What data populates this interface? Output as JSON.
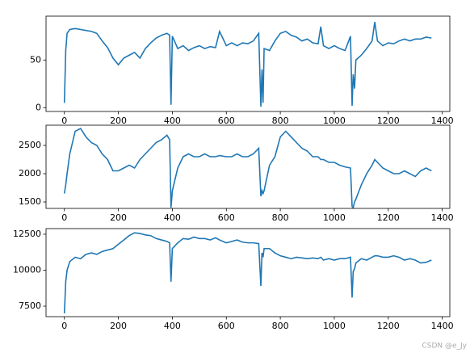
{
  "chart_data": [
    {
      "type": "line",
      "color": "#1f77b4",
      "x": [
        0,
        5,
        10,
        20,
        40,
        60,
        80,
        100,
        120,
        140,
        160,
        180,
        200,
        220,
        240,
        260,
        280,
        300,
        320,
        340,
        360,
        380,
        390,
        395,
        400,
        420,
        440,
        460,
        480,
        500,
        520,
        540,
        560,
        575,
        600,
        620,
        640,
        660,
        680,
        700,
        720,
        728,
        732,
        736,
        740,
        760,
        780,
        800,
        820,
        840,
        860,
        880,
        900,
        920,
        940,
        950,
        960,
        980,
        1000,
        1020,
        1040,
        1060,
        1066,
        1070,
        1075,
        1080,
        1100,
        1120,
        1140,
        1150,
        1160,
        1180,
        1200,
        1220,
        1240,
        1260,
        1280,
        1300,
        1320,
        1340,
        1360
      ],
      "values": [
        5,
        60,
        78,
        82,
        83,
        82,
        81,
        80,
        78,
        70,
        63,
        52,
        45,
        52,
        55,
        58,
        52,
        62,
        68,
        73,
        76,
        78,
        76,
        3,
        75,
        62,
        65,
        60,
        63,
        65,
        62,
        64,
        63,
        80,
        65,
        68,
        65,
        68,
        67,
        70,
        78,
        1,
        40,
        5,
        62,
        60,
        70,
        78,
        80,
        76,
        74,
        70,
        72,
        68,
        67,
        85,
        65,
        62,
        65,
        62,
        60,
        75,
        2,
        35,
        20,
        50,
        55,
        62,
        70,
        90,
        70,
        65,
        68,
        67,
        70,
        72,
        70,
        72,
        72,
        74,
        73
      ],
      "xlim": [
        -68,
        1428
      ],
      "xticks": [
        0,
        200,
        400,
        600,
        800,
        1000,
        1200,
        1400
      ],
      "ylim": [
        -4,
        96
      ],
      "yticks": [
        0,
        50
      ],
      "grid": false
    },
    {
      "type": "line",
      "color": "#1f77b4",
      "x": [
        0,
        5,
        10,
        20,
        40,
        60,
        80,
        100,
        120,
        140,
        160,
        180,
        200,
        220,
        240,
        260,
        280,
        300,
        320,
        340,
        360,
        380,
        390,
        395,
        400,
        420,
        440,
        460,
        480,
        500,
        520,
        540,
        560,
        575,
        600,
        620,
        640,
        660,
        680,
        700,
        720,
        728,
        732,
        736,
        740,
        760,
        780,
        800,
        820,
        840,
        860,
        880,
        900,
        920,
        940,
        950,
        960,
        980,
        1000,
        1020,
        1040,
        1060,
        1066,
        1070,
        1075,
        1080,
        1100,
        1120,
        1140,
        1150,
        1160,
        1180,
        1200,
        1220,
        1240,
        1260,
        1280,
        1300,
        1320,
        1340,
        1360
      ],
      "values": [
        1650,
        1800,
        2000,
        2350,
        2750,
        2800,
        2650,
        2550,
        2500,
        2350,
        2250,
        2050,
        2050,
        2100,
        2150,
        2100,
        2250,
        2350,
        2450,
        2550,
        2600,
        2680,
        2600,
        1400,
        1700,
        2100,
        2300,
        2350,
        2300,
        2300,
        2350,
        2300,
        2300,
        2320,
        2300,
        2300,
        2350,
        2300,
        2300,
        2350,
        2450,
        1600,
        1700,
        1650,
        1700,
        2150,
        2300,
        2650,
        2750,
        2650,
        2550,
        2450,
        2400,
        2300,
        2300,
        2250,
        2250,
        2200,
        2200,
        2150,
        2120,
        2100,
        1420,
        1400,
        1500,
        1550,
        1800,
        2000,
        2150,
        2250,
        2200,
        2100,
        2050,
        2000,
        2000,
        2050,
        2000,
        1950,
        2050,
        2100,
        2050
      ],
      "xlim": [
        -68,
        1428
      ],
      "xticks": [
        0,
        200,
        400,
        600,
        800,
        1000,
        1200,
        1400
      ],
      "ylim": [
        1386,
        2857
      ],
      "yticks": [
        1500,
        2000,
        2500
      ],
      "grid": false
    },
    {
      "type": "line",
      "color": "#1f77b4",
      "x": [
        0,
        5,
        10,
        20,
        40,
        60,
        80,
        100,
        120,
        140,
        160,
        180,
        200,
        220,
        240,
        260,
        280,
        300,
        320,
        340,
        360,
        380,
        390,
        395,
        400,
        420,
        440,
        460,
        480,
        500,
        520,
        540,
        560,
        575,
        600,
        620,
        640,
        660,
        680,
        700,
        720,
        728,
        732,
        736,
        740,
        760,
        780,
        800,
        820,
        840,
        860,
        880,
        900,
        920,
        940,
        950,
        960,
        980,
        1000,
        1020,
        1040,
        1060,
        1066,
        1070,
        1075,
        1080,
        1100,
        1120,
        1140,
        1150,
        1160,
        1180,
        1200,
        1220,
        1240,
        1260,
        1280,
        1300,
        1320,
        1340,
        1360
      ],
      "values": [
        7000,
        9200,
        10000,
        10600,
        10900,
        10800,
        11100,
        11200,
        11100,
        11300,
        11400,
        11500,
        11800,
        12100,
        12400,
        12600,
        12550,
        12450,
        12400,
        12200,
        12100,
        12000,
        11900,
        9200,
        11500,
        11900,
        12200,
        12150,
        12300,
        12200,
        12200,
        12100,
        12250,
        12100,
        11900,
        12000,
        12100,
        11950,
        11900,
        11900,
        11850,
        8900,
        11200,
        10900,
        11500,
        11500,
        11200,
        11000,
        10900,
        10800,
        10900,
        10850,
        10800,
        10850,
        10800,
        10900,
        10700,
        10800,
        10700,
        10800,
        10800,
        10900,
        8100,
        9900,
        10100,
        10500,
        10800,
        10700,
        10900,
        11000,
        11000,
        10900,
        10900,
        11000,
        10900,
        10700,
        10800,
        10700,
        10500,
        10550,
        10700
      ],
      "xlim": [
        -68,
        1428
      ],
      "xticks": [
        0,
        200,
        400,
        600,
        800,
        1000,
        1200,
        1400
      ],
      "ylim": [
        6770,
        12890
      ],
      "yticks": [
        7500,
        10000,
        12500
      ],
      "grid": false
    }
  ],
  "watermark": "CSDN @e_Jy"
}
